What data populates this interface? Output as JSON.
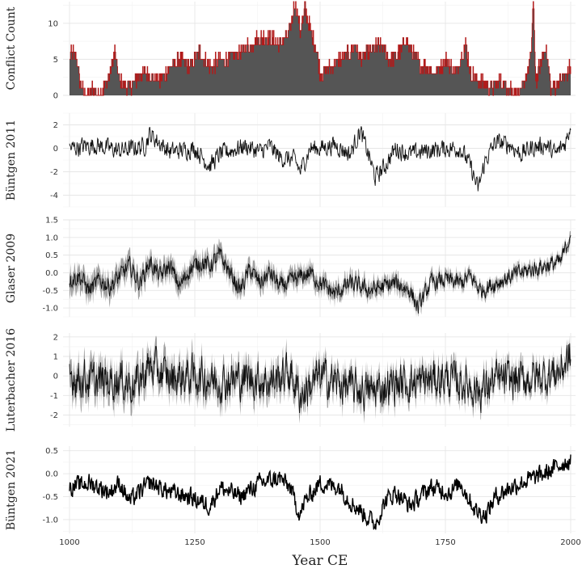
{
  "chart_data": {
    "type": "area+line",
    "xlabel": "Year CE",
    "x_range": [
      1000,
      2000
    ],
    "x_ticks": [
      1000,
      1250,
      1500,
      1750,
      2000
    ],
    "grid": true,
    "colors": {
      "conflict_fill": "#555555",
      "conflict_edge": "#b21a1a",
      "line": "#111111",
      "band": "#8f8f8f"
    },
    "panels": [
      {
        "id": "conflict",
        "ylabel": "Conflict Count",
        "kind": "area",
        "ylim": [
          0,
          13
        ],
        "yticks": [
          0,
          5,
          10
        ],
        "keypoints": [
          [
            1000,
            5
          ],
          [
            1005,
            6
          ],
          [
            1015,
            5
          ],
          [
            1020,
            2
          ],
          [
            1030,
            0
          ],
          [
            1050,
            1
          ],
          [
            1060,
            0
          ],
          [
            1080,
            3
          ],
          [
            1090,
            6
          ],
          [
            1100,
            2
          ],
          [
            1120,
            1
          ],
          [
            1140,
            3
          ],
          [
            1160,
            3
          ],
          [
            1180,
            2
          ],
          [
            1200,
            4
          ],
          [
            1220,
            5
          ],
          [
            1240,
            4
          ],
          [
            1260,
            6
          ],
          [
            1280,
            4
          ],
          [
            1300,
            5
          ],
          [
            1320,
            5
          ],
          [
            1340,
            6
          ],
          [
            1360,
            7
          ],
          [
            1380,
            8
          ],
          [
            1400,
            8
          ],
          [
            1420,
            7
          ],
          [
            1440,
            9
          ],
          [
            1450,
            13
          ],
          [
            1460,
            9
          ],
          [
            1470,
            12
          ],
          [
            1480,
            9
          ],
          [
            1490,
            7
          ],
          [
            1500,
            3
          ],
          [
            1520,
            4
          ],
          [
            1540,
            5
          ],
          [
            1560,
            6
          ],
          [
            1570,
            7
          ],
          [
            1580,
            5
          ],
          [
            1600,
            6
          ],
          [
            1620,
            7
          ],
          [
            1640,
            5
          ],
          [
            1660,
            6
          ],
          [
            1670,
            8
          ],
          [
            1690,
            5
          ],
          [
            1710,
            4
          ],
          [
            1730,
            3
          ],
          [
            1750,
            5
          ],
          [
            1770,
            3
          ],
          [
            1790,
            7
          ],
          [
            1800,
            3
          ],
          [
            1820,
            2
          ],
          [
            1840,
            1
          ],
          [
            1860,
            2
          ],
          [
            1880,
            1
          ],
          [
            1900,
            0
          ],
          [
            1920,
            5
          ],
          [
            1925,
            13
          ],
          [
            1930,
            2
          ],
          [
            1950,
            7
          ],
          [
            1960,
            1
          ],
          [
            1980,
            2
          ],
          [
            2000,
            4
          ]
        ]
      },
      {
        "id": "buntgen2011",
        "ylabel": "Büntgen 2011",
        "kind": "line",
        "ylim": [
          -5,
          3
        ],
        "yticks": [
          2,
          0,
          -2,
          -4
        ],
        "band": false,
        "keypoints": [
          [
            1000,
            0
          ],
          [
            1050,
            0.3
          ],
          [
            1100,
            -0.2
          ],
          [
            1150,
            0.2
          ],
          [
            1160,
            1.2
          ],
          [
            1200,
            -0.3
          ],
          [
            1250,
            0
          ],
          [
            1280,
            -1.5
          ],
          [
            1300,
            -0.5
          ],
          [
            1350,
            0.2
          ],
          [
            1380,
            -0.3
          ],
          [
            1400,
            0.2
          ],
          [
            1420,
            -0.8
          ],
          [
            1450,
            -1.0
          ],
          [
            1460,
            -2.0
          ],
          [
            1480,
            0
          ],
          [
            1500,
            0
          ],
          [
            1530,
            0.3
          ],
          [
            1560,
            -0.5
          ],
          [
            1580,
            1.5
          ],
          [
            1600,
            -1.0
          ],
          [
            1610,
            -2.5
          ],
          [
            1630,
            -1.5
          ],
          [
            1650,
            0
          ],
          [
            1680,
            -0.5
          ],
          [
            1700,
            -0.3
          ],
          [
            1750,
            0
          ],
          [
            1780,
            0
          ],
          [
            1800,
            -1.5
          ],
          [
            1815,
            -3.5
          ],
          [
            1830,
            -1.0
          ],
          [
            1850,
            0.5
          ],
          [
            1880,
            0.3
          ],
          [
            1900,
            -0.5
          ],
          [
            1920,
            0
          ],
          [
            1950,
            0.3
          ],
          [
            1970,
            -0.5
          ],
          [
            1990,
            0.5
          ],
          [
            2000,
            2.0
          ]
        ],
        "noise": 0.7
      },
      {
        "id": "glaser2009",
        "ylabel": "Glaser 2009",
        "kind": "line",
        "ylim": [
          -1.25,
          1.5
        ],
        "yticks": [
          1.5,
          1.0,
          0.5,
          0.0,
          -0.5,
          -1.0
        ],
        "band": true,
        "band_width": [
          0.3,
          0.12
        ],
        "keypoints": [
          [
            1000,
            -0.2
          ],
          [
            1020,
            -0.1
          ],
          [
            1040,
            -0.5
          ],
          [
            1060,
            -0.2
          ],
          [
            1080,
            -0.4
          ],
          [
            1100,
            -0.1
          ],
          [
            1120,
            0.2
          ],
          [
            1140,
            -0.3
          ],
          [
            1160,
            0.3
          ],
          [
            1180,
            -0.1
          ],
          [
            1200,
            0.2
          ],
          [
            1220,
            -0.4
          ],
          [
            1240,
            0.1
          ],
          [
            1260,
            0.3
          ],
          [
            1280,
            0.2
          ],
          [
            1300,
            0.5
          ],
          [
            1320,
            0
          ],
          [
            1340,
            -0.5
          ],
          [
            1360,
            0.1
          ],
          [
            1380,
            -0.3
          ],
          [
            1400,
            0
          ],
          [
            1420,
            -0.4
          ],
          [
            1450,
            -0.2
          ],
          [
            1480,
            0
          ],
          [
            1500,
            -0.3
          ],
          [
            1530,
            -0.6
          ],
          [
            1560,
            -0.3
          ],
          [
            1600,
            -0.5
          ],
          [
            1650,
            -0.3
          ],
          [
            1680,
            -0.5
          ],
          [
            1695,
            -1.0
          ],
          [
            1720,
            -0.3
          ],
          [
            1750,
            -0.2
          ],
          [
            1780,
            -0.3
          ],
          [
            1800,
            -0.1
          ],
          [
            1820,
            -0.5
          ],
          [
            1850,
            -0.3
          ],
          [
            1880,
            -0.1
          ],
          [
            1900,
            0
          ],
          [
            1950,
            0.2
          ],
          [
            1980,
            0.3
          ],
          [
            1995,
            0.9
          ],
          [
            2000,
            1.2
          ]
        ],
        "noise": 0.22
      },
      {
        "id": "luterbacher2016",
        "ylabel": "Luterbacher 2016",
        "kind": "line",
        "ylim": [
          -2.6,
          2.2
        ],
        "yticks": [
          2,
          1,
          0,
          -1,
          -2
        ],
        "band": true,
        "band_width": [
          0.7,
          0.4
        ],
        "keypoints": [
          [
            1000,
            0
          ],
          [
            1050,
            -0.3
          ],
          [
            1100,
            -0.2
          ],
          [
            1130,
            -0.5
          ],
          [
            1160,
            0.5
          ],
          [
            1200,
            -0.1
          ],
          [
            1250,
            0
          ],
          [
            1300,
            -0.3
          ],
          [
            1350,
            -0.1
          ],
          [
            1400,
            -0.3
          ],
          [
            1440,
            0.2
          ],
          [
            1460,
            -1.0
          ],
          [
            1480,
            -0.5
          ],
          [
            1500,
            0
          ],
          [
            1530,
            -0.3
          ],
          [
            1560,
            -0.6
          ],
          [
            1600,
            -0.8
          ],
          [
            1650,
            -0.4
          ],
          [
            1700,
            -0.3
          ],
          [
            1750,
            -0.1
          ],
          [
            1800,
            -0.5
          ],
          [
            1820,
            -0.8
          ],
          [
            1850,
            -0.2
          ],
          [
            1900,
            -0.2
          ],
          [
            1950,
            0
          ],
          [
            1980,
            0.3
          ],
          [
            2000,
            1.0
          ]
        ],
        "noise": 0.9
      },
      {
        "id": "buntgen2021",
        "ylabel": "Büntgen 2021",
        "kind": "line",
        "ylim": [
          -1.3,
          0.6
        ],
        "yticks": [
          0.5,
          0.0,
          -0.5,
          -1.0
        ],
        "band": false,
        "bold": true,
        "keypoints": [
          [
            1000,
            -0.3
          ],
          [
            1040,
            -0.2
          ],
          [
            1060,
            -0.3
          ],
          [
            1080,
            -0.4
          ],
          [
            1100,
            -0.2
          ],
          [
            1120,
            -0.6
          ],
          [
            1160,
            -0.2
          ],
          [
            1200,
            -0.4
          ],
          [
            1240,
            -0.5
          ],
          [
            1280,
            -0.7
          ],
          [
            1300,
            -0.3
          ],
          [
            1340,
            -0.5
          ],
          [
            1380,
            -0.2
          ],
          [
            1420,
            -0.1
          ],
          [
            1440,
            -0.3
          ],
          [
            1460,
            -0.9
          ],
          [
            1470,
            -0.6
          ],
          [
            1500,
            -0.2
          ],
          [
            1540,
            -0.3
          ],
          [
            1560,
            -0.6
          ],
          [
            1590,
            -0.9
          ],
          [
            1610,
            -1.1
          ],
          [
            1630,
            -0.6
          ],
          [
            1650,
            -0.4
          ],
          [
            1680,
            -0.7
          ],
          [
            1700,
            -0.5
          ],
          [
            1720,
            -0.3
          ],
          [
            1760,
            -0.4
          ],
          [
            1780,
            -0.2
          ],
          [
            1810,
            -0.8
          ],
          [
            1830,
            -0.9
          ],
          [
            1850,
            -0.5
          ],
          [
            1880,
            -0.3
          ],
          [
            1900,
            -0.2
          ],
          [
            1950,
            0
          ],
          [
            1980,
            0.2
          ],
          [
            2000,
            0.3
          ]
        ],
        "noise": 0.18
      }
    ]
  }
}
